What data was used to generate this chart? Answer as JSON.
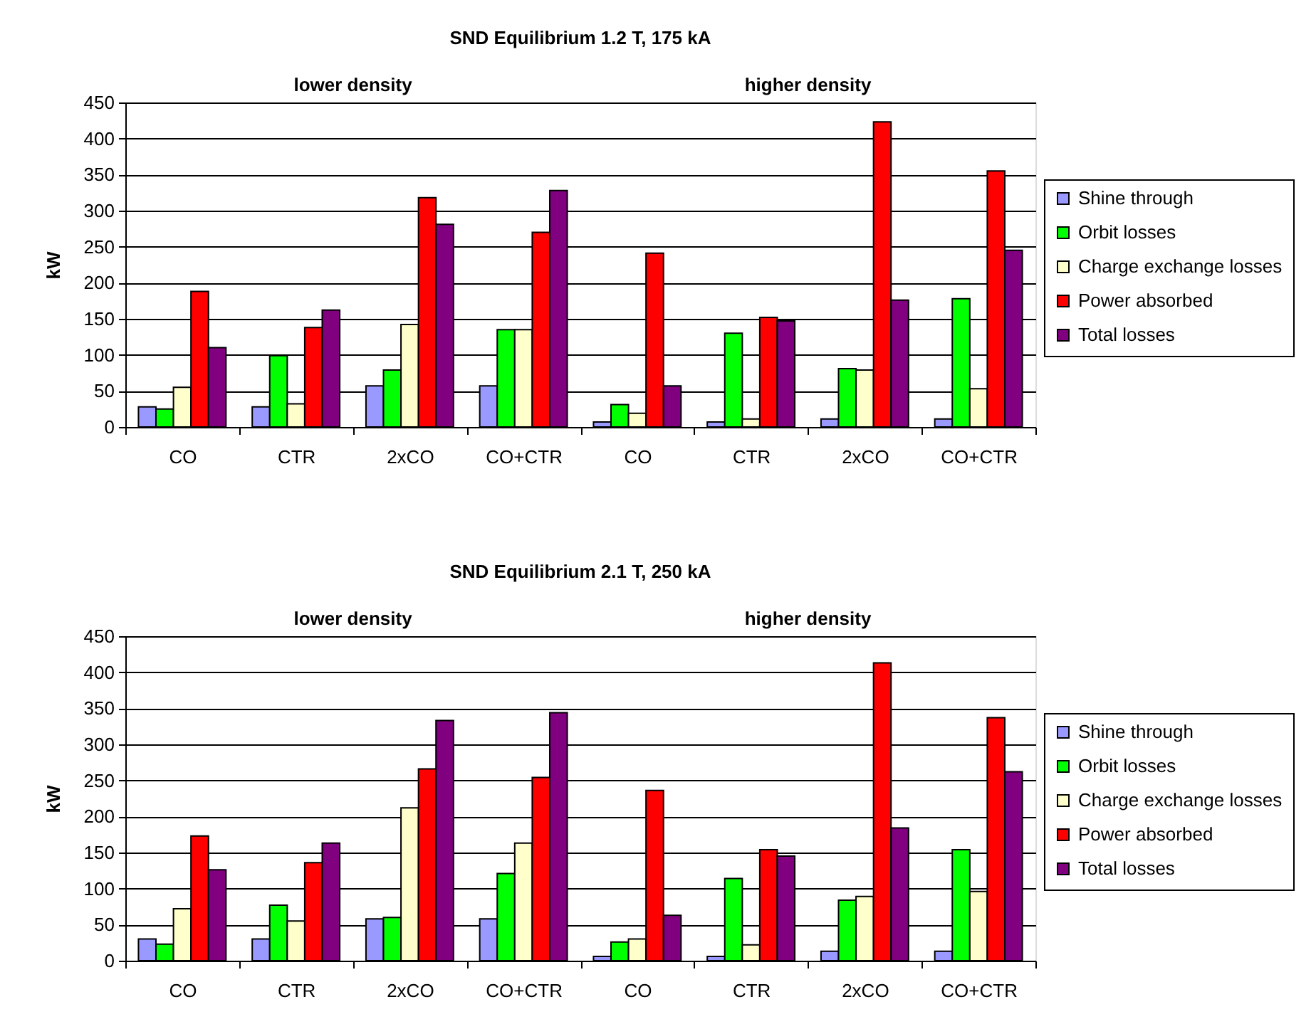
{
  "chart_data": [
    {
      "type": "bar",
      "title": "SND Equilibrium 1.2 T, 175 kA",
      "ylabel": "kW",
      "annotations": [
        "lower density",
        "higher density"
      ],
      "categories": [
        "CO",
        "CTR",
        "2xCO",
        "CO+CTR",
        "CO",
        "CTR",
        "2xCO",
        "CO+CTR"
      ],
      "series": [
        {
          "name": "Shine through",
          "color": "#9999ff",
          "values": [
            28,
            28,
            57,
            57,
            7,
            7,
            11,
            11
          ]
        },
        {
          "name": "Orbit losses",
          "color": "#00ff00",
          "values": [
            25,
            99,
            79,
            135,
            31,
            130,
            81,
            178
          ]
        },
        {
          "name": "Charge exchange losses",
          "color": "#ffffcc",
          "values": [
            55,
            32,
            142,
            135,
            19,
            11,
            79,
            53
          ]
        },
        {
          "name": "Power absorbed",
          "color": "#ff0000",
          "values": [
            188,
            138,
            318,
            270,
            241,
            152,
            423,
            355
          ]
        },
        {
          "name": "Total losses",
          "color": "#800080",
          "values": [
            110,
            162,
            281,
            328,
            57,
            147,
            176,
            245
          ]
        }
      ],
      "ylim": [
        0,
        450
      ],
      "yticks": [
        0,
        50,
        100,
        150,
        200,
        250,
        300,
        350,
        400,
        450
      ],
      "grid": "y",
      "legend": "right"
    },
    {
      "type": "bar",
      "title": "SND Equilibrium 2.1 T, 250 kA",
      "ylabel": "kW",
      "annotations": [
        "lower density",
        "higher density"
      ],
      "categories": [
        "CO",
        "CTR",
        "2xCO",
        "CO+CTR",
        "CO",
        "CTR",
        "2xCO",
        "CO+CTR"
      ],
      "series": [
        {
          "name": "Shine through",
          "color": "#9999ff",
          "values": [
            30,
            30,
            58,
            58,
            6,
            6,
            13,
            13
          ]
        },
        {
          "name": "Orbit losses",
          "color": "#00ff00",
          "values": [
            23,
            77,
            60,
            121,
            26,
            114,
            84,
            154
          ]
        },
        {
          "name": "Charge exchange losses",
          "color": "#ffffcc",
          "values": [
            72,
            55,
            212,
            163,
            30,
            22,
            89,
            96
          ]
        },
        {
          "name": "Power absorbed",
          "color": "#ff0000",
          "values": [
            173,
            136,
            266,
            254,
            236,
            154,
            413,
            337
          ]
        },
        {
          "name": "Total losses",
          "color": "#800080",
          "values": [
            126,
            163,
            333,
            344,
            63,
            145,
            184,
            262
          ]
        }
      ],
      "ylim": [
        0,
        450
      ],
      "yticks": [
        0,
        50,
        100,
        150,
        200,
        250,
        300,
        350,
        400,
        450
      ],
      "grid": "y",
      "legend": "right"
    }
  ]
}
